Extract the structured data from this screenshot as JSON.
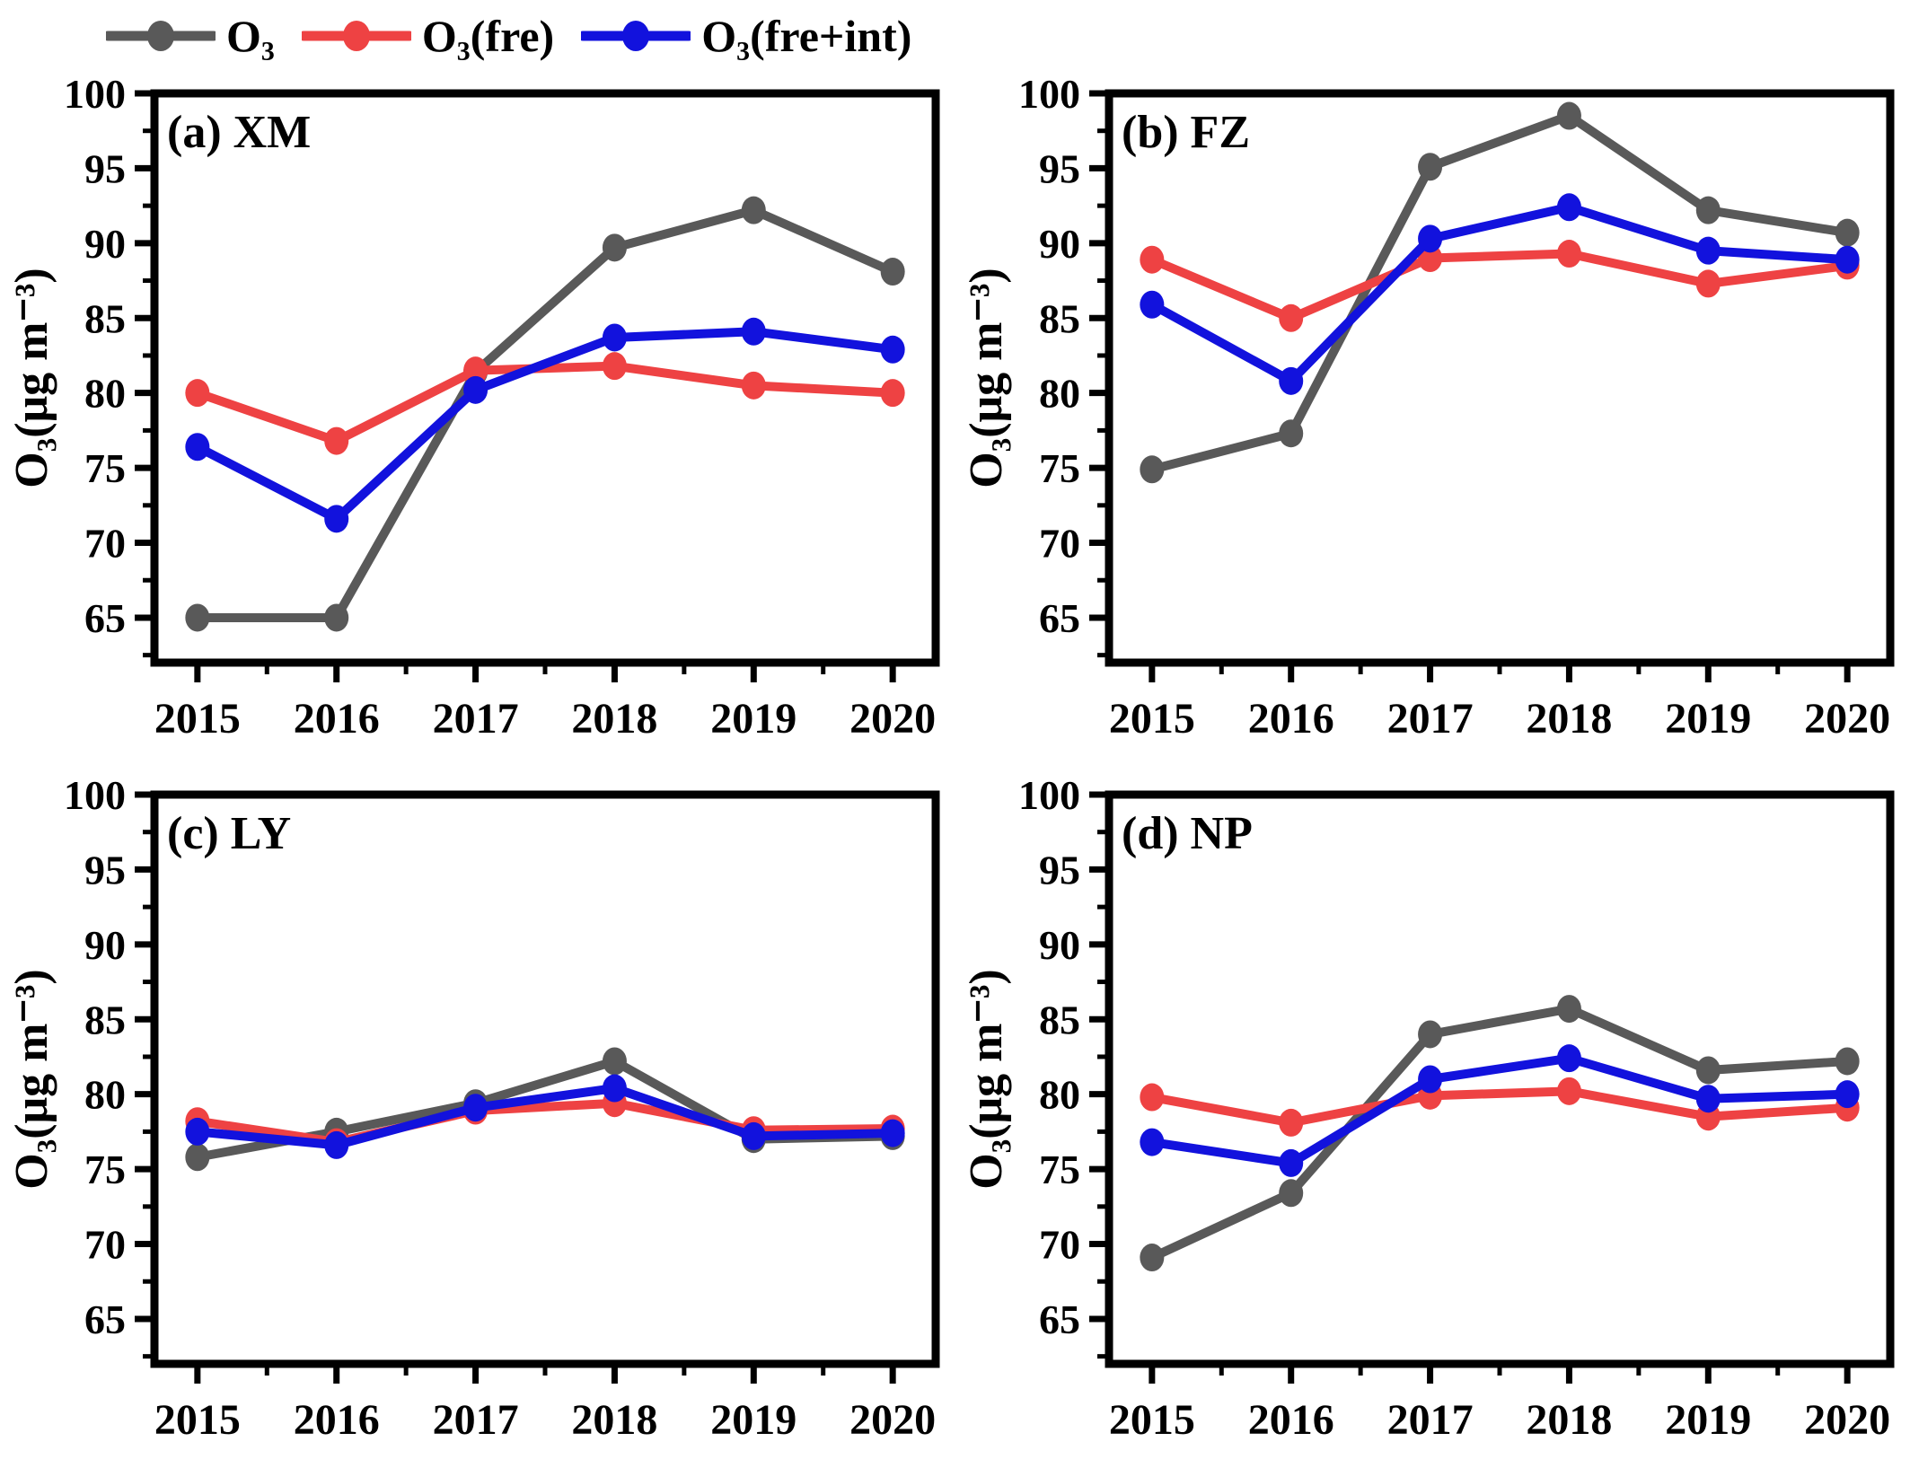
{
  "figure_title": "",
  "legend": {
    "items": [
      {
        "name": "O₃",
        "color": "#595959"
      },
      {
        "name": "O₃(fre)",
        "color": "#ee4243"
      },
      {
        "name": "O₃(fre+int)",
        "color": "#1212dd"
      }
    ]
  },
  "axis_style": {
    "frame_color": "#000000",
    "tick_color": "#000000"
  },
  "chart_data": [
    {
      "type": "line",
      "panel_label": "(a) XM",
      "x": [
        2015,
        2016,
        2017,
        2018,
        2019,
        2020
      ],
      "ylabel": "O₃(μg m⁻³)",
      "ylim": [
        62,
        100
      ],
      "yticks": [
        65,
        70,
        75,
        80,
        85,
        90,
        95,
        100
      ],
      "legend_position": "none",
      "grid": false,
      "series": [
        {
          "name": "O₃",
          "color": "#595959",
          "values": [
            65.0,
            65.0,
            81.4,
            89.7,
            92.2,
            88.1
          ]
        },
        {
          "name": "O₃(fre)",
          "color": "#ee4243",
          "values": [
            80.0,
            76.8,
            81.5,
            81.8,
            80.5,
            80.0
          ]
        },
        {
          "name": "O₃(fre+int)",
          "color": "#1212dd",
          "values": [
            76.4,
            71.6,
            80.2,
            83.7,
            84.1,
            82.9
          ]
        }
      ]
    },
    {
      "type": "line",
      "panel_label": "(b) FZ",
      "x": [
        2015,
        2016,
        2017,
        2018,
        2019,
        2020
      ],
      "ylabel": "O₃(μg m⁻³)",
      "ylim": [
        62,
        100
      ],
      "yticks": [
        65,
        70,
        75,
        80,
        85,
        90,
        95,
        100
      ],
      "legend_position": "none",
      "grid": false,
      "series": [
        {
          "name": "O₃",
          "color": "#595959",
          "values": [
            74.9,
            77.3,
            95.1,
            98.5,
            92.2,
            90.7
          ]
        },
        {
          "name": "O₃(fre)",
          "color": "#ee4243",
          "values": [
            88.9,
            85.0,
            89.0,
            89.3,
            87.3,
            88.5
          ]
        },
        {
          "name": "O₃(fre+int)",
          "color": "#1212dd",
          "values": [
            85.9,
            80.8,
            90.3,
            92.4,
            89.5,
            88.9
          ]
        }
      ]
    },
    {
      "type": "line",
      "panel_label": "(c) LY",
      "x": [
        2015,
        2016,
        2017,
        2018,
        2019,
        2020
      ],
      "ylabel": "O₃(μg m⁻³)",
      "ylim": [
        62,
        100
      ],
      "yticks": [
        65,
        70,
        75,
        80,
        85,
        90,
        95,
        100
      ],
      "legend_position": "none",
      "grid": false,
      "series": [
        {
          "name": "O₃",
          "color": "#595959",
          "values": [
            75.8,
            77.5,
            79.4,
            82.2,
            77.0,
            77.2
          ]
        },
        {
          "name": "O₃(fre)",
          "color": "#ee4243",
          "values": [
            78.2,
            76.8,
            78.9,
            79.4,
            77.6,
            77.7
          ]
        },
        {
          "name": "O₃(fre+int)",
          "color": "#1212dd",
          "values": [
            77.5,
            76.6,
            79.1,
            80.4,
            77.2,
            77.4
          ]
        }
      ]
    },
    {
      "type": "line",
      "panel_label": "(d) NP",
      "x": [
        2015,
        2016,
        2017,
        2018,
        2019,
        2020
      ],
      "ylabel": "O₃(μg m⁻³)",
      "ylim": [
        62,
        100
      ],
      "yticks": [
        65,
        70,
        75,
        80,
        85,
        90,
        95,
        100
      ],
      "legend_position": "none",
      "grid": false,
      "series": [
        {
          "name": "O₃",
          "color": "#595959",
          "values": [
            69.1,
            73.4,
            84.0,
            85.7,
            81.6,
            82.2
          ]
        },
        {
          "name": "O₃(fre)",
          "color": "#ee4243",
          "values": [
            79.8,
            78.1,
            79.9,
            80.2,
            78.5,
            79.1
          ]
        },
        {
          "name": "O₃(fre+int)",
          "color": "#1212dd",
          "values": [
            76.8,
            75.4,
            81.0,
            82.4,
            79.7,
            80.0
          ]
        }
      ]
    }
  ]
}
